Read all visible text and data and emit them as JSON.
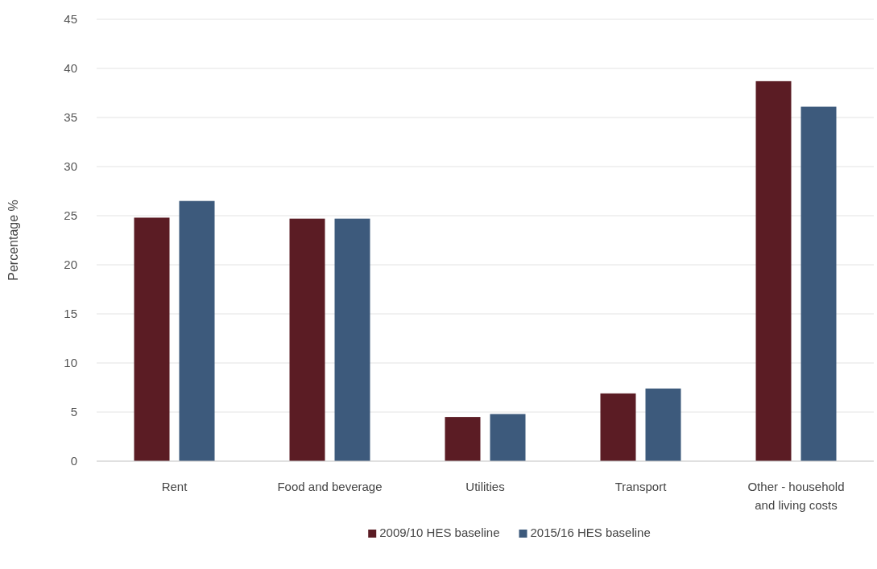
{
  "chart_data": {
    "type": "bar",
    "ylabel": "Percentage %",
    "categories": [
      "Rent",
      "Food and beverage",
      "Utilities",
      "Transport",
      "Other - household and living costs"
    ],
    "series": [
      {
        "name": "2009/10 HES baseline",
        "color": "#5b1c24",
        "values": [
          24.8,
          24.7,
          4.5,
          6.9,
          38.7
        ]
      },
      {
        "name": "2015/16 HES baseline",
        "color": "#3d5a7c",
        "values": [
          26.5,
          24.7,
          4.8,
          7.4,
          36.1
        ]
      }
    ],
    "ylim": [
      0,
      45
    ],
    "yticks": [
      0,
      5,
      10,
      15,
      20,
      25,
      30,
      35,
      40,
      45
    ],
    "grid": "y",
    "legend": "bottom"
  }
}
